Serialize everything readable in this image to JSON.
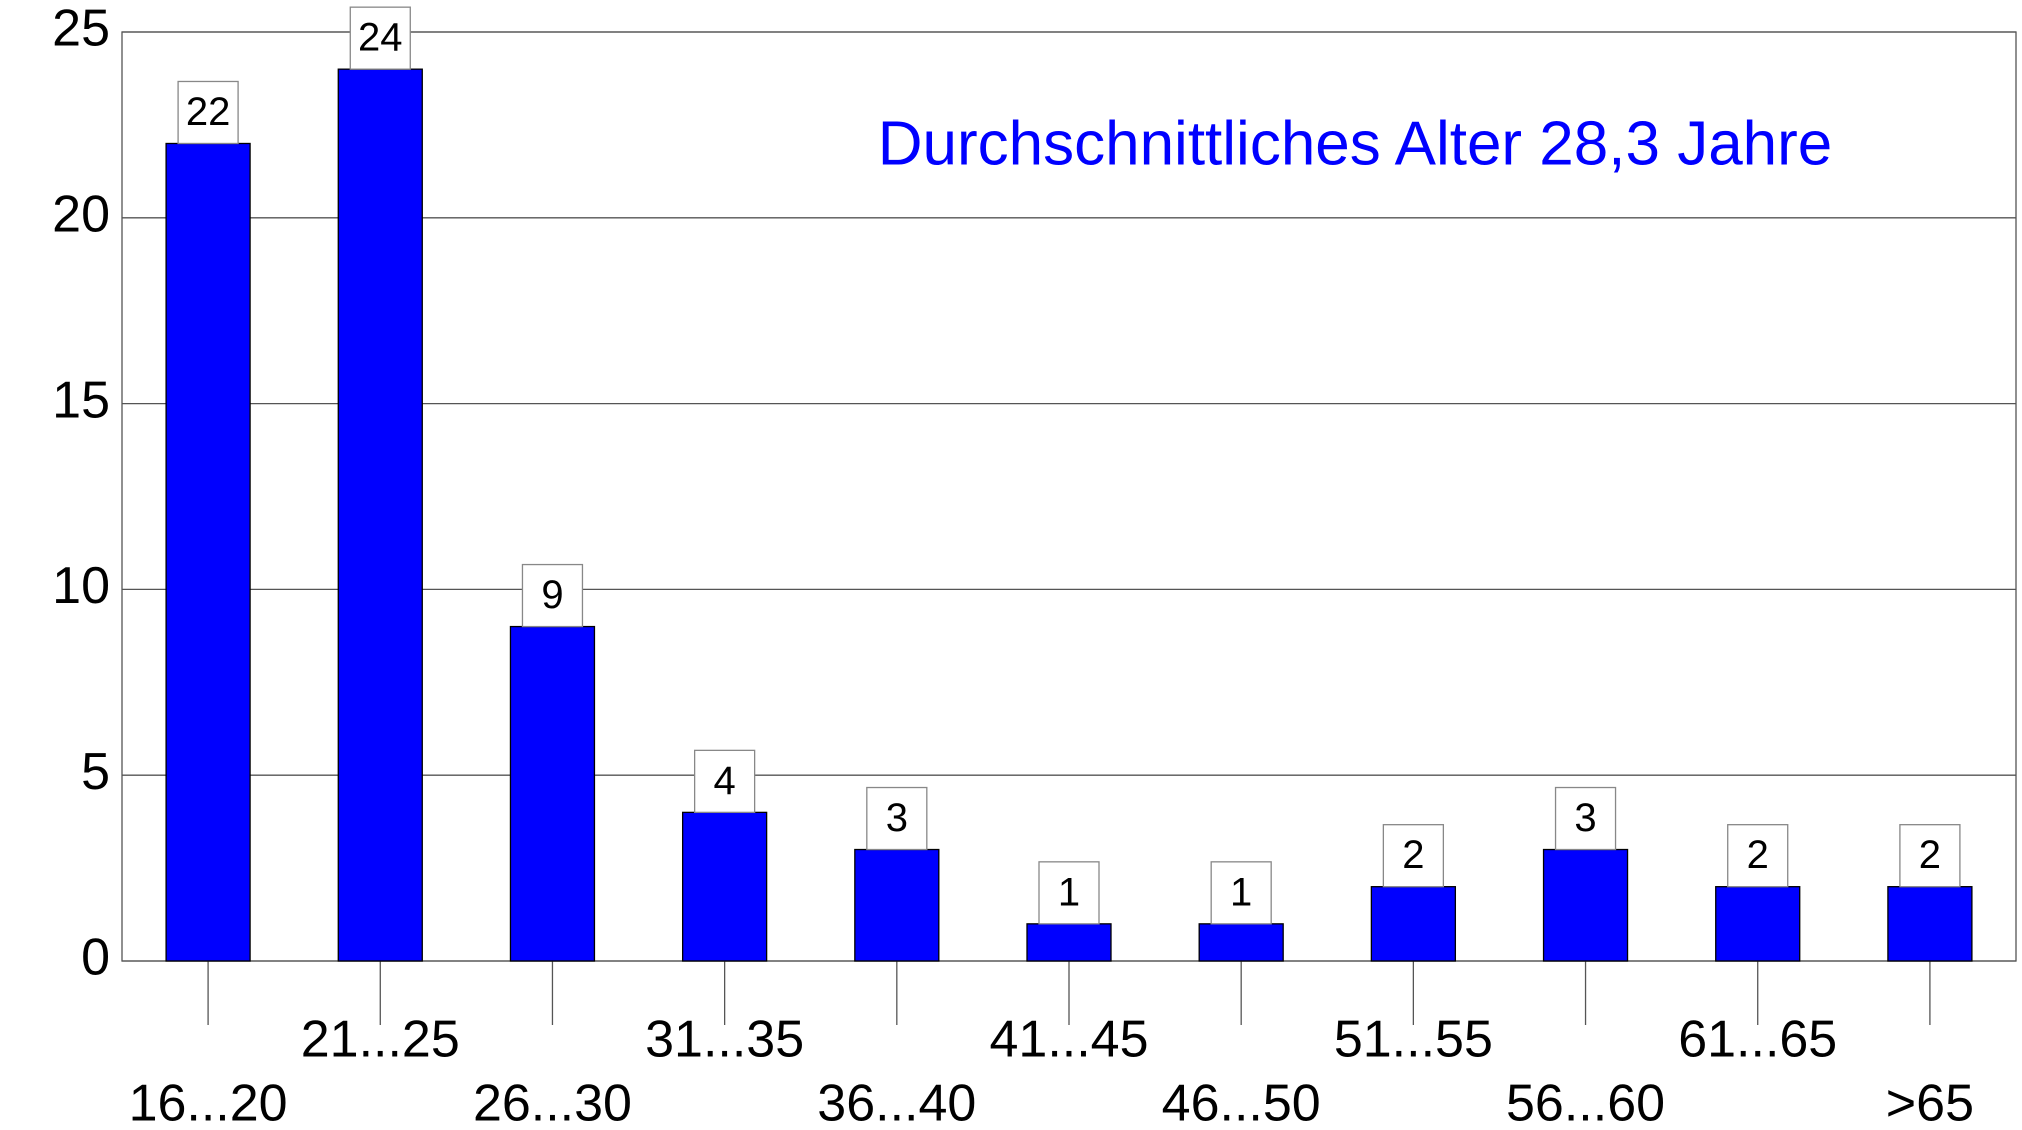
{
  "chart_data": {
    "type": "bar",
    "annotation": "Durchschnittliches Alter  28,3 Jahre",
    "categories": [
      "16...20",
      "21...25",
      "26...30",
      "31...35",
      "36...40",
      "41...45",
      "46...50",
      "51...55",
      "56...60",
      "61...65",
      ">65"
    ],
    "values": [
      22,
      24,
      9,
      4,
      3,
      1,
      1,
      2,
      3,
      2,
      2
    ],
    "color": "#0000ff",
    "ylim": [
      0,
      25
    ],
    "yticks": [
      0,
      5,
      10,
      15,
      20,
      25
    ],
    "grid": true
  }
}
